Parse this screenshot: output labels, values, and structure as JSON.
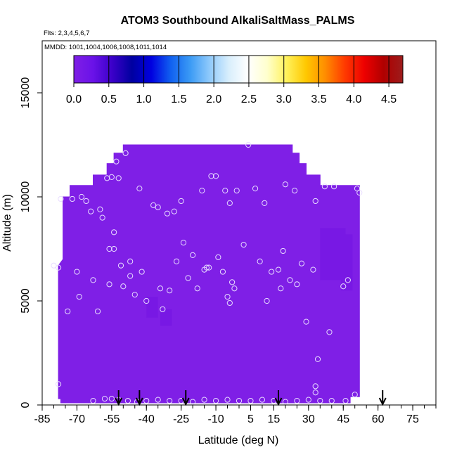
{
  "chart_data": {
    "type": "heatmap",
    "title": "ATOM3 Southbound AlkaliSaltMass_PALMS",
    "flights_label": "Flts: 2,3,4,5,6,7",
    "dates_label": "MMDD: 1001,1004,1006,1008,1011,1014",
    "xlabel": "Latitude (deg N)",
    "ylabel": "Altitude (m)",
    "xlim": [
      -85,
      85
    ],
    "ylim": [
      0,
      17500
    ],
    "x_ticks": [
      -85,
      -70,
      -55,
      -40,
      -25,
      -10,
      5,
      15,
      30,
      45,
      60,
      75
    ],
    "x_minor_step": 5,
    "y_ticks": [
      0,
      5000,
      10000,
      15000
    ],
    "colorbar": {
      "range": [
        0,
        4.7
      ],
      "ticks": [
        0.0,
        0.5,
        1.0,
        1.5,
        2.0,
        2.5,
        3.0,
        3.5,
        4.0,
        4.5
      ],
      "tick_labels": [
        "0.0",
        "0.5",
        "1.0",
        "1.5",
        "2.0",
        "2.5",
        "3.0",
        "3.5",
        "4.0",
        "4.5"
      ],
      "colors": [
        "#7f1fe6",
        "#6a12e8",
        "#3a00c8",
        "#0000a0",
        "#0000e0",
        "#1060f0",
        "#3a9af5",
        "#8ec9fb",
        "#d8eefc",
        "#ffffff",
        "#ffffcc",
        "#fff15a",
        "#ffc800",
        "#ff8c00",
        "#ff3a00",
        "#ee0000",
        "#b00000",
        "#9c1c1c"
      ]
    },
    "field_value": 0.05,
    "field_color": "#7f1fe6",
    "field_outline": [
      [
        -78,
        300
      ],
      [
        -78,
        6700
      ],
      [
        -76,
        7000
      ],
      [
        -76,
        10000
      ],
      [
        -73,
        10000
      ],
      [
        -73,
        10550
      ],
      [
        -63,
        10550
      ],
      [
        -63,
        11050
      ],
      [
        -57,
        11050
      ],
      [
        -57,
        11600
      ],
      [
        -54,
        11600
      ],
      [
        -54,
        12100
      ],
      [
        -50,
        12100
      ],
      [
        -50,
        12500
      ],
      [
        23,
        12500
      ],
      [
        23,
        12100
      ],
      [
        26,
        12100
      ],
      [
        26,
        11600
      ],
      [
        29,
        11600
      ],
      [
        29,
        11050
      ],
      [
        35,
        11050
      ],
      [
        35,
        10550
      ],
      [
        52,
        10550
      ],
      [
        52,
        400
      ],
      [
        48,
        400
      ],
      [
        48,
        100
      ],
      [
        -77,
        100
      ],
      [
        -77,
        300
      ]
    ],
    "darker_patches": [
      {
        "lat": [
          35,
          46
        ],
        "alt": [
          6000,
          8500
        ],
        "value": 0.1,
        "color": "#7818e4"
      },
      {
        "lat": [
          44,
          49
        ],
        "alt": [
          5500,
          8200
        ],
        "value": 0.1,
        "color": "#7818e4"
      },
      {
        "lat": [
          -40,
          -35
        ],
        "alt": [
          4200,
          5200
        ],
        "value": 0.1,
        "color": "#7818e4"
      },
      {
        "lat": [
          -34,
          -29
        ],
        "alt": [
          3800,
          4600
        ],
        "value": 0.1,
        "color": "#7818e4"
      }
    ],
    "sample_points": [
      [
        -80,
        6700
      ],
      [
        -78,
        6600
      ],
      [
        -77,
        9900
      ],
      [
        -74,
        4500
      ],
      [
        -72,
        9900
      ],
      [
        -70,
        6400
      ],
      [
        -69,
        5200
      ],
      [
        -68,
        10000
      ],
      [
        -66,
        9800
      ],
      [
        -64,
        9300
      ],
      [
        -63,
        6000
      ],
      [
        -61,
        4500
      ],
      [
        -60,
        9400
      ],
      [
        -59,
        9000
      ],
      [
        -57,
        10900
      ],
      [
        -56,
        7500
      ],
      [
        -56,
        5800
      ],
      [
        -55,
        10950
      ],
      [
        -54,
        8300
      ],
      [
        -54,
        7500
      ],
      [
        -53,
        11700
      ],
      [
        -52,
        10900
      ],
      [
        -51,
        6700
      ],
      [
        -50,
        5700
      ],
      [
        -49,
        12100
      ],
      [
        -47,
        6200
      ],
      [
        -47,
        6900
      ],
      [
        -45,
        5300
      ],
      [
        -43,
        10400
      ],
      [
        -42,
        6400
      ],
      [
        -40,
        5000
      ],
      [
        -37,
        9600
      ],
      [
        -35,
        9500
      ],
      [
        -34,
        5600
      ],
      [
        -33,
        4600
      ],
      [
        -31,
        9200
      ],
      [
        -30,
        5500
      ],
      [
        -28,
        9300
      ],
      [
        -27,
        6900
      ],
      [
        -25,
        9800
      ],
      [
        -24,
        7800
      ],
      [
        -22,
        6100
      ],
      [
        -20,
        7200
      ],
      [
        -18,
        5600
      ],
      [
        -16,
        10300
      ],
      [
        -15,
        6500
      ],
      [
        -14,
        6600
      ],
      [
        -13,
        6600
      ],
      [
        -12,
        11000
      ],
      [
        -10,
        11000
      ],
      [
        -9,
        7100
      ],
      [
        -7,
        6400
      ],
      [
        -6,
        10300
      ],
      [
        -5,
        5200
      ],
      [
        -4,
        9700
      ],
      [
        -4,
        4900
      ],
      [
        -3,
        5900
      ],
      [
        -2,
        5600
      ],
      [
        -1,
        10300
      ],
      [
        2,
        7700
      ],
      [
        4,
        12500
      ],
      [
        7,
        10400
      ],
      [
        9,
        6900
      ],
      [
        11,
        9700
      ],
      [
        12,
        5000
      ],
      [
        14,
        6400
      ],
      [
        17,
        6500
      ],
      [
        18,
        5600
      ],
      [
        19,
        7400
      ],
      [
        20,
        10600
      ],
      [
        22,
        6000
      ],
      [
        24,
        10300
      ],
      [
        25,
        5800
      ],
      [
        27,
        6800
      ],
      [
        29,
        4000
      ],
      [
        32,
        6500
      ],
      [
        33,
        9800
      ],
      [
        34,
        2200
      ],
      [
        37,
        10500
      ],
      [
        39,
        3500
      ],
      [
        41,
        10500
      ],
      [
        45,
        5700
      ],
      [
        47,
        6000
      ],
      [
        51,
        10400
      ],
      [
        52,
        10200
      ],
      [
        -78,
        1000
      ],
      [
        -63,
        200
      ],
      [
        -58,
        300
      ],
      [
        -55,
        300
      ],
      [
        -52,
        250
      ],
      [
        -48,
        200
      ],
      [
        -44,
        150
      ],
      [
        -40,
        200
      ],
      [
        -35,
        250
      ],
      [
        -30,
        200
      ],
      [
        -25,
        200
      ],
      [
        -20,
        150
      ],
      [
        -15,
        250
      ],
      [
        -10,
        200
      ],
      [
        -5,
        250
      ],
      [
        0,
        200
      ],
      [
        5,
        200
      ],
      [
        10,
        250
      ],
      [
        15,
        200
      ],
      [
        20,
        150
      ],
      [
        25,
        200
      ],
      [
        30,
        250
      ],
      [
        33,
        600
      ],
      [
        33,
        900
      ],
      [
        35,
        200
      ],
      [
        40,
        200
      ],
      [
        46,
        200
      ],
      [
        50,
        500
      ]
    ],
    "flight_markers": [
      -52,
      -43,
      -23,
      17,
      62
    ],
    "grid": false
  }
}
